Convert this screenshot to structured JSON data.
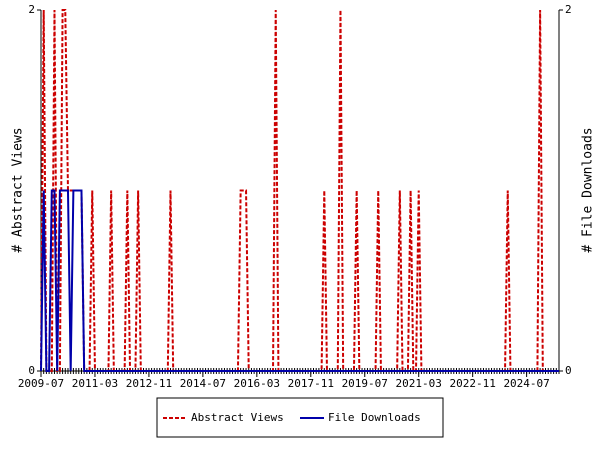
{
  "chart_data": {
    "type": "line",
    "x": [
      "2009-07",
      "2009-08",
      "2009-09",
      "2009-10",
      "2009-11",
      "2009-12",
      "2010-01",
      "2010-02",
      "2010-03",
      "2010-04",
      "2010-05",
      "2010-06",
      "2010-07",
      "2010-08",
      "2010-09",
      "2010-10",
      "2010-11",
      "2010-12",
      "2011-01",
      "2011-02",
      "2011-03",
      "2011-04",
      "2011-05",
      "2011-06",
      "2011-07",
      "2011-08",
      "2011-09",
      "2011-10",
      "2011-11",
      "2011-12",
      "2012-01",
      "2012-02",
      "2012-03",
      "2012-04",
      "2012-05",
      "2012-06",
      "2012-07",
      "2012-08",
      "2012-09",
      "2012-10",
      "2012-11",
      "2012-12",
      "2013-01",
      "2013-02",
      "2013-03",
      "2013-04",
      "2013-05",
      "2013-06",
      "2013-07",
      "2013-08",
      "2013-09",
      "2013-10",
      "2013-11",
      "2013-12",
      "2014-01",
      "2014-02",
      "2014-03",
      "2014-04",
      "2014-05",
      "2014-06",
      "2014-07",
      "2014-08",
      "2014-09",
      "2014-10",
      "2014-11",
      "2014-12",
      "2015-01",
      "2015-02",
      "2015-03",
      "2015-04",
      "2015-05",
      "2015-06",
      "2015-07",
      "2015-08",
      "2015-09",
      "2015-10",
      "2015-11",
      "2015-12",
      "2016-01",
      "2016-02",
      "2016-03",
      "2016-04",
      "2016-05",
      "2016-06",
      "2016-07",
      "2016-08",
      "2016-09",
      "2016-10",
      "2016-11",
      "2016-12",
      "2017-01",
      "2017-02",
      "2017-03",
      "2017-04",
      "2017-05",
      "2017-06",
      "2017-07",
      "2017-08",
      "2017-09",
      "2017-10",
      "2017-11",
      "2017-12",
      "2018-01",
      "2018-02",
      "2018-03",
      "2018-04",
      "2018-05",
      "2018-06",
      "2018-07",
      "2018-08",
      "2018-09",
      "2018-10",
      "2018-11",
      "2018-12",
      "2019-01",
      "2019-02",
      "2019-03",
      "2019-04",
      "2019-05",
      "2019-06",
      "2019-07",
      "2019-08",
      "2019-09",
      "2019-10",
      "2019-11",
      "2019-12",
      "2020-01",
      "2020-02",
      "2020-03",
      "2020-04",
      "2020-05",
      "2020-06",
      "2020-07",
      "2020-08",
      "2020-09",
      "2020-10",
      "2020-11",
      "2020-12",
      "2021-01",
      "2021-02",
      "2021-03",
      "2021-04",
      "2021-05",
      "2021-06",
      "2021-07",
      "2021-08",
      "2021-09",
      "2021-10",
      "2021-11",
      "2021-12",
      "2022-01",
      "2022-02",
      "2022-03",
      "2022-04",
      "2022-05",
      "2022-06",
      "2022-07",
      "2022-08",
      "2022-09",
      "2022-10",
      "2022-11",
      "2022-12",
      "2023-01",
      "2023-02",
      "2023-03",
      "2023-04",
      "2023-05",
      "2023-06",
      "2023-07",
      "2023-08",
      "2023-09",
      "2023-10",
      "2023-11",
      "2023-12",
      "2024-01",
      "2024-02",
      "2024-03",
      "2024-04",
      "2024-05",
      "2024-06",
      "2024-07",
      "2024-08",
      "2024-09",
      "2024-10",
      "2024-11",
      "2024-12",
      "2025-01",
      "2025-02",
      "2025-03",
      "2025-04",
      "2025-05",
      "2025-06",
      "2025-07"
    ],
    "xticks": [
      "2009-07",
      "2011-03",
      "2012-11",
      "2014-07",
      "2016-03",
      "2017-11",
      "2019-07",
      "2021-03",
      "2022-11",
      "2024-07"
    ],
    "ylabel": "# Abstract Views",
    "y2label": "# File Downloads",
    "ylim": [
      0,
      2
    ],
    "yticks": [
      0,
      2
    ],
    "y2lim": [
      0,
      2
    ],
    "y2ticks": [
      0,
      2
    ],
    "legend": "bottom",
    "series": [
      {
        "name": "Abstract Views",
        "color": "#cc0000",
        "dashed": true,
        "values": [
          0,
          2,
          0,
          0,
          0,
          2,
          0,
          0,
          2,
          2,
          1,
          1,
          1,
          1,
          1,
          1,
          0,
          0,
          0,
          1,
          0,
          0,
          0,
          0,
          0,
          0,
          1,
          0,
          0,
          0,
          0,
          0,
          1,
          0,
          0,
          0,
          1,
          0,
          0,
          0,
          0,
          0,
          0,
          0,
          0,
          0,
          0,
          0,
          1,
          0,
          0,
          0,
          0,
          0,
          0,
          0,
          0,
          0,
          0,
          0,
          0,
          0,
          0,
          0,
          0,
          0,
          0,
          0,
          0,
          0,
          0,
          0,
          0,
          0,
          1,
          1,
          1,
          0,
          0,
          0,
          0,
          0,
          0,
          0,
          0,
          0,
          0,
          2,
          0,
          0,
          0,
          0,
          0,
          0,
          0,
          0,
          0,
          0,
          0,
          0,
          0,
          0,
          0,
          0,
          0,
          1,
          0,
          0,
          0,
          0,
          0,
          2,
          0,
          0,
          0,
          0,
          0,
          1,
          0,
          0,
          0,
          0,
          0,
          0,
          0,
          1,
          0,
          0,
          0,
          0,
          0,
          0,
          0,
          1,
          0,
          0,
          0,
          1,
          0,
          0,
          1,
          0,
          0,
          0,
          0,
          0,
          0,
          0,
          0,
          0,
          0,
          0,
          0,
          0,
          0,
          0,
          0,
          0,
          0,
          0,
          0,
          0,
          0,
          0,
          0,
          0,
          0,
          0,
          0,
          0,
          0,
          0,
          0,
          1,
          0,
          0,
          0,
          0,
          0,
          0,
          0,
          0,
          0,
          0,
          0,
          2,
          0,
          0,
          0,
          0,
          0,
          0,
          0
        ]
      },
      {
        "name": "File Downloads",
        "color": "#0000aa",
        "axis": "y2",
        "dashed": false,
        "values": [
          0,
          1,
          0,
          0,
          1,
          1,
          0,
          1,
          1,
          1,
          1,
          0,
          1,
          1,
          1,
          1,
          0,
          0,
          0,
          0,
          0,
          0,
          0,
          0,
          0,
          0,
          0,
          0,
          0,
          0,
          0,
          0,
          0,
          0,
          0,
          0,
          0,
          0,
          0,
          0,
          0,
          0,
          0,
          0,
          0,
          0,
          0,
          0,
          0,
          0,
          0,
          0,
          0,
          0,
          0,
          0,
          0,
          0,
          0,
          0,
          0,
          0,
          0,
          0,
          0,
          0,
          0,
          0,
          0,
          0,
          0,
          0,
          0,
          0,
          0,
          0,
          0,
          0,
          0,
          0,
          0,
          0,
          0,
          0,
          0,
          0,
          0,
          0,
          0,
          0,
          0,
          0,
          0,
          0,
          0,
          0,
          0,
          0,
          0,
          0,
          0,
          0,
          0,
          0,
          0,
          0,
          0,
          0,
          0,
          0,
          0,
          0,
          0,
          0,
          0,
          0,
          0,
          0,
          0,
          0,
          0,
          0,
          0,
          0,
          0,
          0,
          0,
          0,
          0,
          0,
          0,
          0,
          0,
          0,
          0,
          0,
          0,
          0,
          0,
          0,
          0,
          0,
          0,
          0,
          0,
          0,
          0,
          0,
          0,
          0,
          0,
          0,
          0,
          0,
          0,
          0,
          0,
          0,
          0,
          0,
          0,
          0,
          0,
          0,
          0,
          0,
          0,
          0,
          0,
          0,
          0,
          0,
          0,
          0,
          0,
          0,
          0,
          0,
          0,
          0,
          0,
          0,
          0,
          0,
          0,
          0,
          0,
          0,
          0,
          0,
          0,
          0,
          0
        ]
      }
    ]
  }
}
